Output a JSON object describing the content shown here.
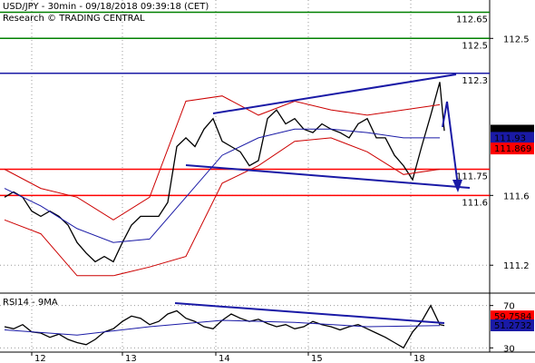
{
  "chart_data": [
    {
      "type": "line",
      "title": "USD/JPY - 30min - 09/18/2018 09:39:18 (CET)",
      "subtitle": "Research © TRADING CENTRAL",
      "ylim": [
        111.04,
        112.72
      ],
      "yticks": [
        112.5,
        111.6,
        111.2
      ],
      "grid": true,
      "series": [
        {
          "color": "#000000",
          "x": [
            1,
            3,
            5,
            7,
            9,
            11,
            13,
            15,
            17,
            19,
            21,
            23,
            25,
            27,
            29,
            31,
            33,
            35,
            37,
            39,
            41,
            43,
            45,
            47,
            49,
            51,
            53,
            55,
            57,
            59,
            61,
            63,
            65,
            67,
            69,
            71,
            73,
            75,
            77,
            79,
            81,
            83,
            85,
            87,
            89,
            91,
            93,
            95,
            97,
            98
          ],
          "values": [
            111.59,
            111.62,
            111.59,
            111.51,
            111.48,
            111.51,
            111.48,
            111.43,
            111.33,
            111.27,
            111.22,
            111.25,
            111.22,
            111.33,
            111.43,
            111.48,
            111.48,
            111.48,
            111.56,
            111.88,
            111.93,
            111.88,
            111.98,
            112.04,
            111.91,
            111.88,
            111.85,
            111.77,
            111.8,
            112.04,
            112.09,
            112.01,
            112.04,
            111.98,
            111.96,
            112.01,
            111.98,
            111.96,
            111.93,
            112.01,
            112.04,
            111.93,
            111.93,
            111.83,
            111.77,
            111.69,
            111.88,
            112.06,
            112.25,
            111.97
          ]
        },
        {
          "color": "#1a1aa6",
          "x": [
            1,
            9,
            17,
            25,
            33,
            41,
            49,
            57,
            65,
            73,
            81,
            89,
            97
          ],
          "values": [
            111.64,
            111.54,
            111.41,
            111.33,
            111.35,
            111.59,
            111.83,
            111.93,
            111.98,
            111.98,
            111.96,
            111.93,
            111.93
          ]
        },
        {
          "color": "#cc0000",
          "x": [
            1,
            9,
            17,
            25,
            33,
            41,
            49,
            57,
            65,
            73,
            81,
            89,
            97
          ],
          "values": [
            111.75,
            111.64,
            111.59,
            111.46,
            111.59,
            112.14,
            112.17,
            112.06,
            112.14,
            112.09,
            112.06,
            112.09,
            112.12
          ]
        },
        {
          "color": "#cc0000",
          "x": [
            1,
            9,
            17,
            25,
            33,
            41,
            49,
            57,
            65,
            73,
            81,
            89,
            97
          ],
          "values": [
            111.46,
            111.38,
            111.14,
            111.14,
            111.19,
            111.25,
            111.67,
            111.77,
            111.91,
            111.93,
            111.85,
            111.72,
            111.75
          ]
        }
      ],
      "levels": [
        {
          "value": 112.65,
          "color": "#008000"
        },
        {
          "value": 112.5,
          "color": "#008000"
        },
        {
          "value": 112.3,
          "color": "#1a1aa6"
        },
        {
          "value": 111.75,
          "color": "#ff0000"
        },
        {
          "value": 111.6,
          "color": "#ff0000"
        }
      ],
      "tags": [
        {
          "value": 111.971,
          "color": "#000000"
        },
        {
          "value": 111.93,
          "color": "#1a1aa6"
        },
        {
          "value": 111.869,
          "color": "#ff0000"
        }
      ]
    },
    {
      "type": "line",
      "title": "RSI14 - 9MA",
      "ylim": [
        26,
        80
      ],
      "yticks": [
        70,
        30
      ],
      "xlim": [
        0,
        108
      ],
      "xticks": [
        {
          "value": 7,
          "label": "12"
        },
        {
          "value": 27,
          "label": "13"
        },
        {
          "value": 47.6,
          "label": "14"
        },
        {
          "value": 68,
          "label": "15"
        },
        {
          "value": 90.6,
          "label": "18"
        }
      ],
      "grid": true,
      "series": [
        {
          "color": "#000000",
          "x": [
            1,
            3,
            5,
            7,
            9,
            11,
            13,
            15,
            17,
            19,
            21,
            23,
            25,
            27,
            29,
            31,
            33,
            35,
            37,
            39,
            41,
            43,
            45,
            47,
            49,
            51,
            53,
            55,
            57,
            59,
            61,
            63,
            65,
            67,
            69,
            71,
            73,
            75,
            77,
            79,
            81,
            83,
            85,
            87,
            89,
            91,
            93,
            95,
            97,
            98
          ],
          "values": [
            50,
            48,
            52,
            45,
            44,
            40,
            43,
            38,
            35,
            33,
            38,
            45,
            48,
            55,
            60,
            58,
            52,
            55,
            62,
            65,
            58,
            55,
            50,
            48,
            56,
            62,
            58,
            55,
            57,
            53,
            50,
            52,
            48,
            50,
            55,
            52,
            50,
            47,
            50,
            52,
            48,
            44,
            40,
            35,
            30,
            45,
            55,
            70,
            52,
            51
          ]
        },
        {
          "color": "#1a1aa6",
          "x": [
            1,
            17,
            33,
            49,
            65,
            81,
            97
          ],
          "values": [
            47,
            42,
            50,
            56,
            54,
            50,
            51
          ]
        }
      ],
      "tags": [
        {
          "value": 59.7584,
          "color": "#ff0000"
        },
        {
          "value": 51.2732,
          "color": "#1a1aa6"
        }
      ]
    }
  ]
}
